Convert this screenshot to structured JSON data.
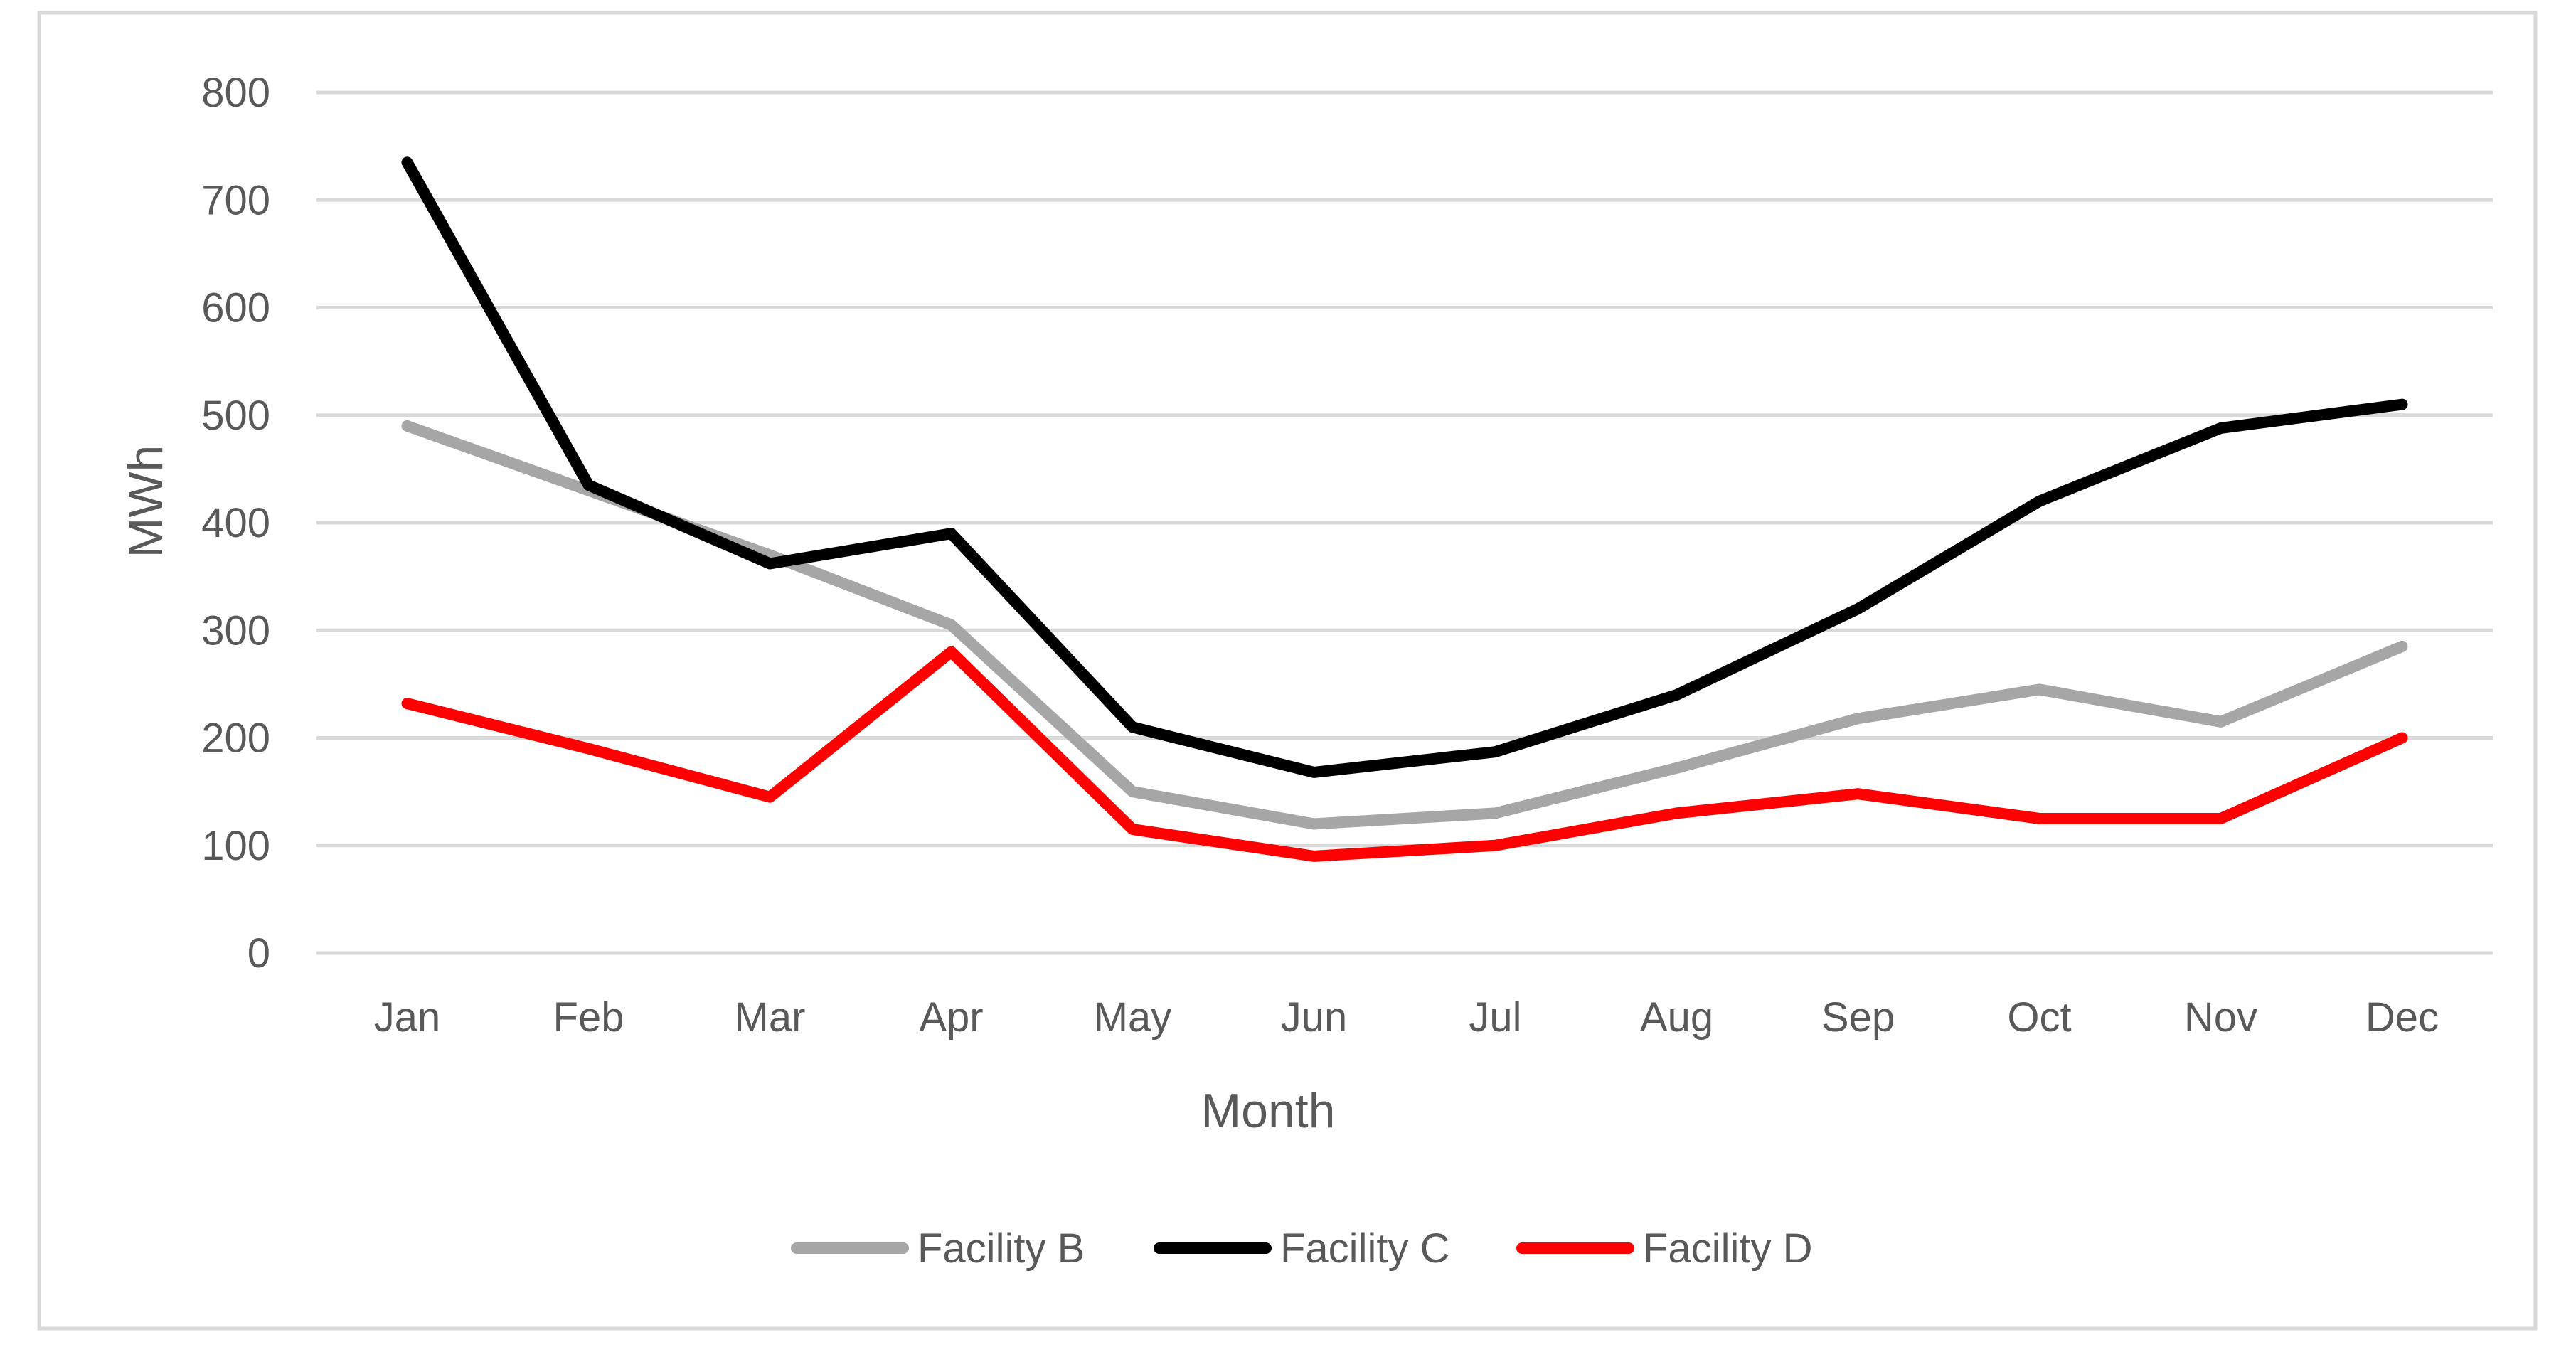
{
  "chart_data": {
    "type": "line",
    "title": "",
    "xlabel": "Month",
    "ylabel": "MWh",
    "ylim": [
      0,
      800
    ],
    "yticks": [
      "0",
      "100",
      "200",
      "300",
      "400",
      "500",
      "600",
      "700",
      "800"
    ],
    "grid": true,
    "legend_position": "bottom",
    "categories": [
      "Jan",
      "Feb",
      "Mar",
      "Apr",
      "May",
      "Jun",
      "Jul",
      "Aug",
      "Sep",
      "Oct",
      "Nov",
      "Dec"
    ],
    "series": [
      {
        "name": "Facility B",
        "color": "#a6a6a6",
        "values": [
          490,
          430,
          370,
          305,
          150,
          120,
          130,
          172,
          218,
          245,
          215,
          285
        ]
      },
      {
        "name": "Facility C",
        "color": "#000000",
        "values": [
          735,
          435,
          362,
          390,
          210,
          168,
          187,
          240,
          320,
          420,
          488,
          510
        ]
      },
      {
        "name": "Facility D",
        "color": "#ff0000",
        "values": [
          232,
          190,
          145,
          280,
          115,
          90,
          100,
          130,
          148,
          125,
          125,
          200
        ]
      }
    ]
  }
}
